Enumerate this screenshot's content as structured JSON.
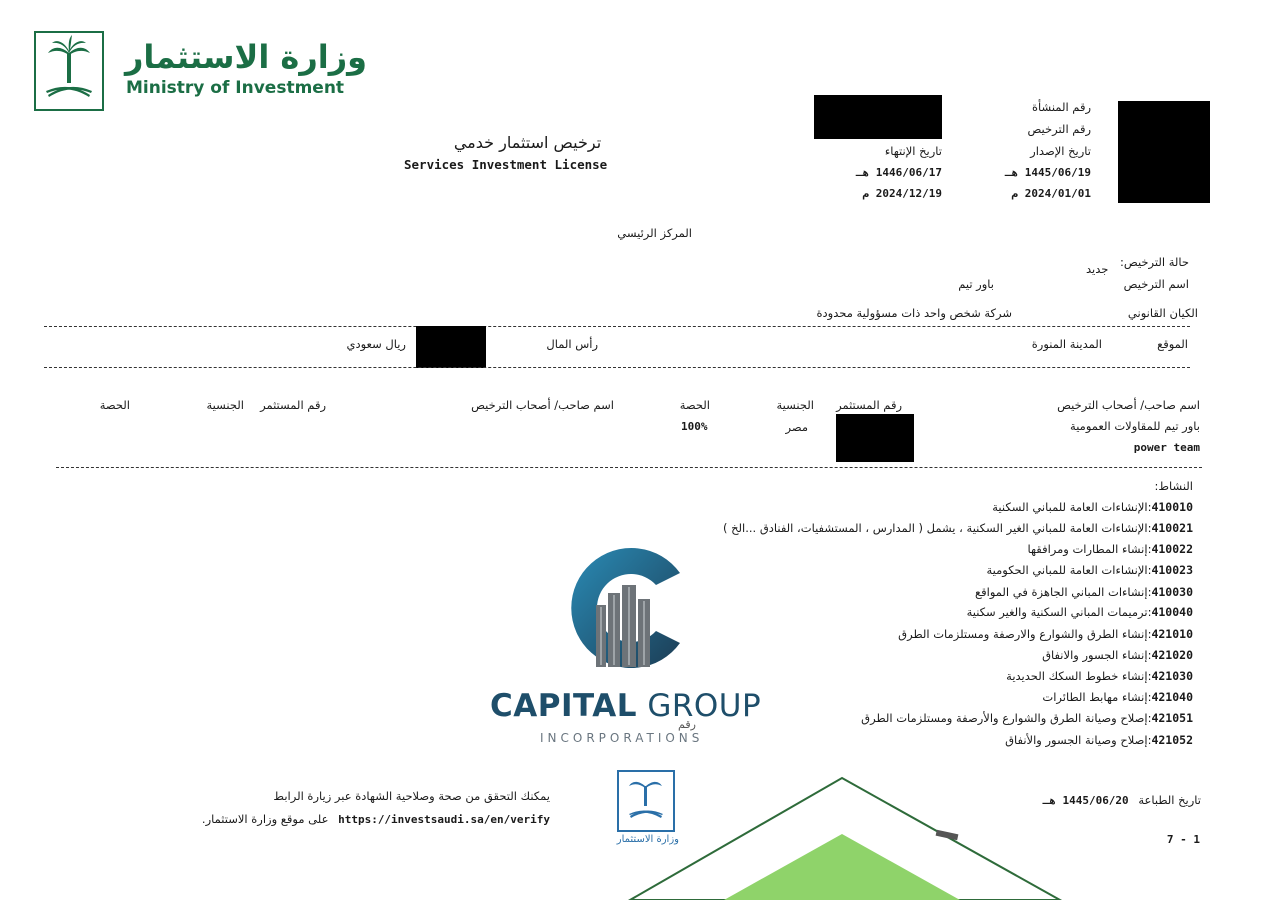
{
  "ministry": {
    "name_ar": "وزارة الاستثمار",
    "name_en": "Ministry of Investment"
  },
  "license_title": {
    "ar": "ترخيص استثمار خدمي",
    "en": "Services Investment License"
  },
  "header_fields": {
    "establishment_no_label": "رقم المنشأة",
    "license_no_label": "رقم الترخيص",
    "issue_date_label": "تاريخ الإصدار",
    "issue_date_hijri": "1445/06/19 هـ",
    "issue_date_greg": "2024/01/01 م",
    "expiry_date_label": "تاريخ الإنتهاء",
    "expiry_date_hijri": "1446/06/17 هـ",
    "expiry_date_greg": "2024/12/19 م"
  },
  "main_center": "المركز الرئيسي",
  "status": {
    "label": "حالة الترخيص:",
    "value": "جديد"
  },
  "license_name": {
    "label": "اسم الترخيص",
    "value": "باور تيم"
  },
  "legal_entity": {
    "label": "الكيان القانوني",
    "value": "شركة شخص واحد ذات مسؤولية محدودة"
  },
  "location": {
    "label": "الموقع",
    "value": "المدينة المنورة"
  },
  "capital": {
    "label": "رأس المال",
    "currency": "ريال سعودي"
  },
  "owners_table": {
    "headers_right": [
      "اسم صاحب/ أصحاب الترخيص",
      "رقم المستثمر",
      "الجنسية",
      "الحصة"
    ],
    "headers_left": [
      "اسم صاحب/ أصحاب الترخيص",
      "رقم المستثمر",
      "الجنسية",
      "الحصة"
    ],
    "rows": [
      {
        "name_ar": "باور تيم للمقاولات العمومية",
        "name_en": "power team",
        "nationality": "مصر",
        "share": "100%"
      }
    ]
  },
  "activity_label": "النشاط:",
  "activities": [
    {
      "code": "410010",
      "desc": "الإنشاءات العامة للمباني السكنية"
    },
    {
      "code": "410021",
      "desc": "الإنشاءات العامة للمباني الغير السكنية ، يشمل ( المدارس ، المستشفيات، الفنادق ...الخ )"
    },
    {
      "code": "410022",
      "desc": "إنشاء المطارات ومرافقها"
    },
    {
      "code": "410023",
      "desc": "الإنشاءات العامة للمباني الحكومية"
    },
    {
      "code": "410030",
      "desc": "إنشاءات المباني الجاهزة في المواقع"
    },
    {
      "code": "410040",
      "desc": "ترميمات المباني السكنية والغير سكنية"
    },
    {
      "code": "421010",
      "desc": "إنشاء الطرق والشوارع والارصفة ومستلزمات الطرق"
    },
    {
      "code": "421020",
      "desc": "إنشاء الجسور والانفاق"
    },
    {
      "code": "421030",
      "desc": "إنشاء خطوط السكك الحديدية"
    },
    {
      "code": "421040",
      "desc": "إنشاء مهابط الطائرات"
    },
    {
      "code": "421051",
      "desc": "إصلاح وصيانة الطرق والشوارع والأرصفة ومستلزمات الطرق"
    },
    {
      "code": "421052",
      "desc": "إصلاح وصيانة الجسور والأنفاق"
    }
  ],
  "footer": {
    "verify_line1": "يمكنك التحقق من صحة وصلاحية الشهادة عبر زيارة الرابط",
    "verify_url": "https://investsaudi.sa/en/verify",
    "verify_line2_suffix": "على موقع وزارة الاستثمار.",
    "print_date_label": "تاريخ الطباعة",
    "print_date": "1445/06/20 هـ",
    "page": "7 - 1"
  },
  "watermark": {
    "name_bold": "CAPITAL",
    "name_light": "GROUP",
    "sub": "INCORPORATIONS",
    "small": "رقم"
  },
  "colors": {
    "ministry_green": "#1b6e45",
    "watermark_blue": "#1e4e6a",
    "stamp_blue": "#2a6fa8",
    "diamond_green": "#8fd36a"
  }
}
